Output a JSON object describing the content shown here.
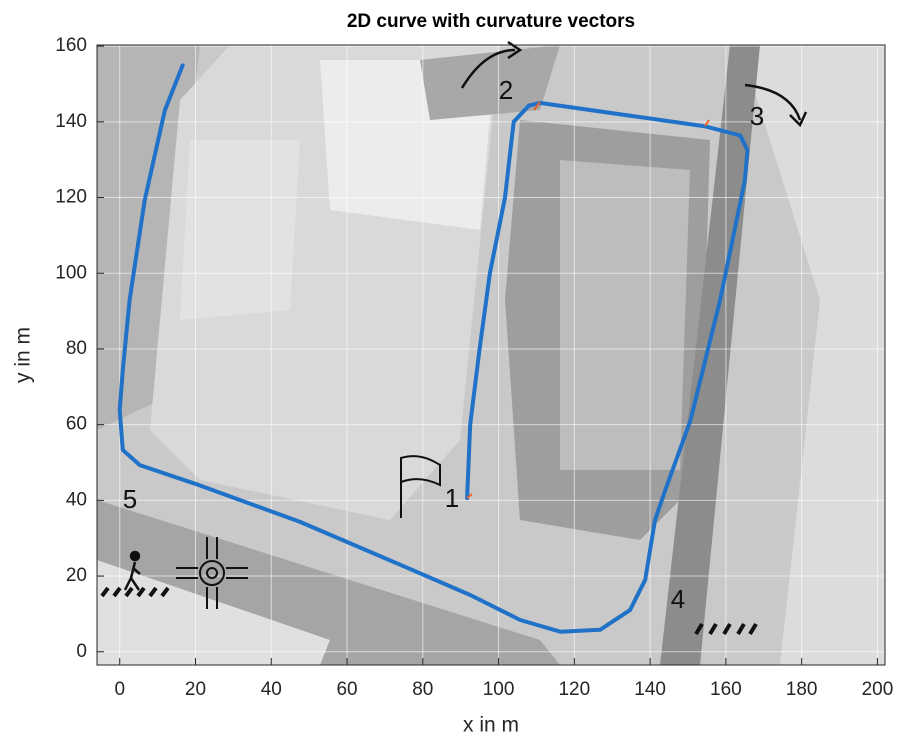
{
  "chart_data": {
    "type": "line",
    "title": "2D curve with curvature vectors",
    "x_label": "x in m",
    "y_label": "y in m",
    "x": [
      91.7,
      92.5,
      95,
      97.7,
      101.7,
      104,
      108,
      110.9,
      154.6,
      163.8,
      165.7,
      165,
      158.5,
      150.6,
      144,
      141.3,
      138.7,
      134.7,
      126.8,
      116.3,
      105.7,
      92.5,
      74,
      47.6,
      21,
      5.3,
      0.8,
      0,
      0.8,
      2.6,
      6.6,
      11.9,
      16.6
    ],
    "values": [
      40.6,
      60,
      80,
      100,
      120,
      140,
      144.3,
      145,
      138.8,
      136.4,
      132.5,
      124.5,
      93,
      61,
      42.7,
      34.8,
      19,
      11,
      5.8,
      5.3,
      8.4,
      15,
      23,
      34.3,
      44,
      49.3,
      53.3,
      63.9,
      74.4,
      92.9,
      119.3,
      143,
      154.9
    ],
    "color": "#1f72c8",
    "xlim": [
      -6,
      202
    ],
    "ylim": [
      -3.5,
      160.3
    ],
    "xticks": [
      0,
      20,
      40,
      60,
      80,
      100,
      120,
      140,
      160,
      180,
      200
    ],
    "yticks": [
      0,
      20,
      40,
      60,
      80,
      100,
      120,
      140,
      160
    ],
    "grid": true,
    "annotations": [
      "1",
      "2",
      "3",
      "4",
      "5"
    ]
  }
}
